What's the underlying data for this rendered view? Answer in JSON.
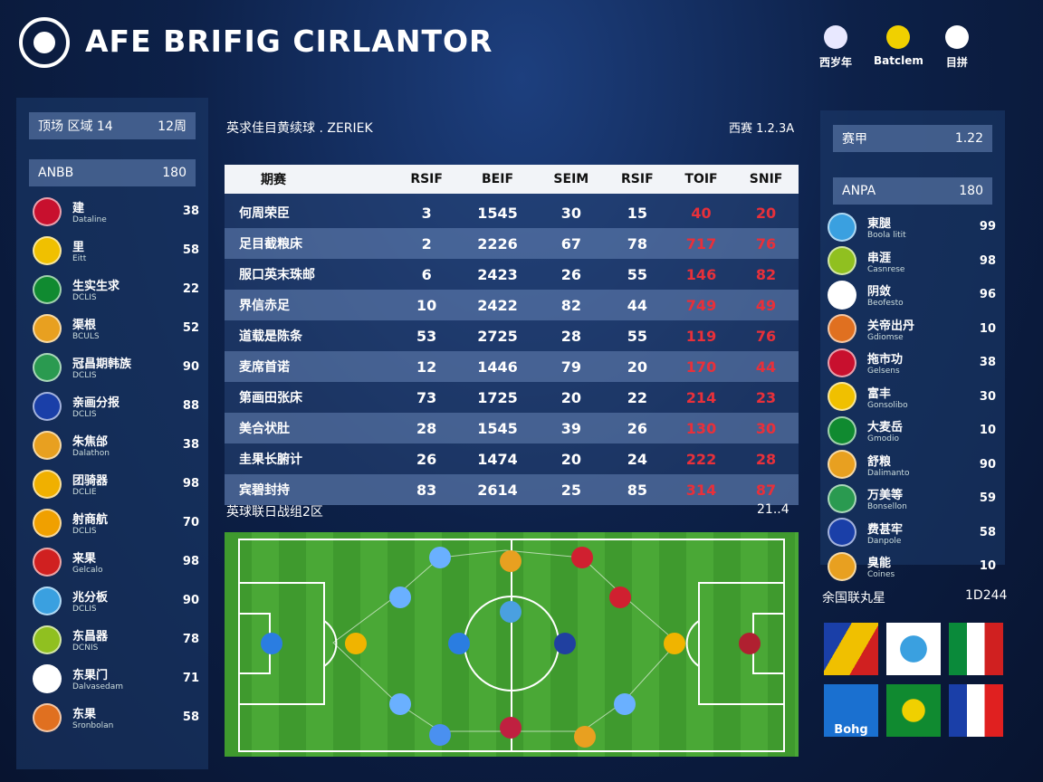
{
  "header": {
    "title": "AFE BRIFIG CIRLANTOR",
    "icons": [
      "西岁年",
      "Batclem",
      "目拼"
    ]
  },
  "left_panel": {
    "top": {
      "label": "顶场 区域 14",
      "value": "12周"
    },
    "sub": {
      "label": "ANBB",
      "value": "180"
    },
    "teams": [
      {
        "name": "建",
        "sub": "Dataline",
        "value": 38
      },
      {
        "name": "里",
        "sub": "Eitt",
        "value": 58
      },
      {
        "name": "生实生求",
        "sub": "DCLIS",
        "value": 22
      },
      {
        "name": "渠根",
        "sub": "BCULS",
        "value": 52
      },
      {
        "name": "冠昌期韩族",
        "sub": "DCLIS",
        "value": 90
      },
      {
        "name": "亲画分报",
        "sub": "DCLIS",
        "value": 88
      },
      {
        "name": "朱焦邰",
        "sub": "Dalathon",
        "value": 38
      },
      {
        "name": "团骑器",
        "sub": "DCLIE",
        "value": 98
      },
      {
        "name": "射商航",
        "sub": "DCLIS",
        "value": 70
      },
      {
        "name": "来果",
        "sub": "Gelcalo",
        "value": 98
      },
      {
        "name": "兆分板",
        "sub": "DCLIS",
        "value": 90
      },
      {
        "name": "东昌器",
        "sub": "DCNIS",
        "value": 78
      },
      {
        "name": "东果门",
        "sub": "Dalvasedam",
        "value": 71
      },
      {
        "name": "东果",
        "sub": "Sronbolan",
        "value": 58
      }
    ]
  },
  "center": {
    "title": "英求佳目黄续球 . ZERIEK",
    "meta": "西赛 1.2.3A",
    "table": {
      "headers": [
        "期赛",
        "RSIF",
        "BEIF",
        "SEIM",
        "RSIF",
        "TOIF",
        "SNIF"
      ],
      "rows": [
        [
          "何周荣臣",
          3,
          1545,
          30,
          15,
          40,
          20
        ],
        [
          "足目截粮床",
          2,
          2226,
          67,
          78,
          717,
          76
        ],
        [
          "服口英末珠邮",
          6,
          2423,
          26,
          55,
          146,
          82
        ],
        [
          "界信赤足",
          10,
          2422,
          82,
          44,
          749,
          49
        ],
        [
          "道载是陈条",
          53,
          2725,
          28,
          55,
          119,
          76
        ],
        [
          "麦席首诺",
          12,
          1446,
          79,
          20,
          170,
          44
        ],
        [
          "第画田张床",
          73,
          1725,
          20,
          22,
          214,
          23
        ],
        [
          "美合状肚",
          28,
          1545,
          39,
          26,
          130,
          30
        ],
        [
          "圭果长腑计",
          26,
          1474,
          20,
          24,
          222,
          28
        ],
        [
          "宾碧封持",
          83,
          2614,
          25,
          85,
          314,
          87
        ]
      ]
    },
    "section": {
      "label": "英球联日战组2区",
      "value": "21..4"
    }
  },
  "right_panel": {
    "top": {
      "label": "赛甲",
      "value": "1.22"
    },
    "sub": {
      "label": "ANPA",
      "value": "180"
    },
    "teams": [
      {
        "name": "東腿",
        "sub": "Boola litit",
        "value": 99
      },
      {
        "name": "串涯",
        "sub": "Casnrese",
        "value": 98
      },
      {
        "name": "阴敛",
        "sub": "Beofesto",
        "value": 96
      },
      {
        "name": "关帝出丹",
        "sub": "Gdiomse",
        "value": 10
      },
      {
        "name": "拖市功",
        "sub": "Gelsens",
        "value": 38
      },
      {
        "name": "富丰",
        "sub": "Gonsolibo",
        "value": 30
      },
      {
        "name": "大麦岳",
        "sub": "Gmodio",
        "value": 10
      },
      {
        "name": "舒粮",
        "sub": "Dalimanto",
        "value": 90
      },
      {
        "name": "万美等",
        "sub": "Bonsellon",
        "value": 59
      },
      {
        "name": "费甚牢",
        "sub": "Danpole",
        "value": 58
      },
      {
        "name": "臭能",
        "sub": "Coines",
        "value": 10
      }
    ],
    "section": {
      "label": "余国联丸星",
      "value": "1D244"
    },
    "tile_label": "Bohg"
  }
}
